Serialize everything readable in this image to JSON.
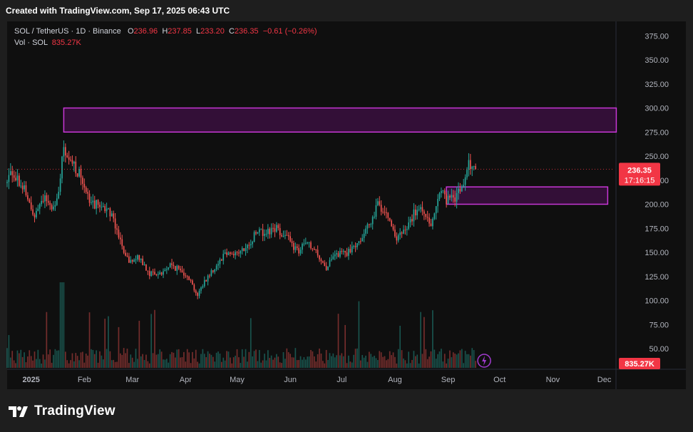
{
  "header": {
    "created_text": "Created with TradingView.com, Sep 17, 2025 06:43 UTC"
  },
  "legend": {
    "symbol": "SOL / TetherUS · 1D · Binance",
    "open_label": "O",
    "open": "236.96",
    "high_label": "H",
    "high": "237.85",
    "low_label": "L",
    "low": "233.20",
    "close_label": "C",
    "close": "236.35",
    "change": "−0.61 (−0.26%)",
    "vol_label": "Vol · SOL",
    "vol_value": "835.27K"
  },
  "brand": {
    "name": "TradingView"
  },
  "colors": {
    "up": "#26a69a",
    "down": "#ef5350",
    "box_stroke": "#c837d6",
    "box_fill": "#3a0f3e",
    "price_tag": "#f23645"
  },
  "chart_data": {
    "type": "candlestick",
    "x_range": [
      "2024-12-18",
      "2025-12-07"
    ],
    "y_range": [
      30,
      390
    ],
    "y_ticks": [
      "375.00",
      "350.00",
      "325.00",
      "300.00",
      "275.00",
      "250.00",
      "225.00",
      "200.00",
      "175.00",
      "150.00",
      "125.00",
      "100.00",
      "75.00",
      "50.00"
    ],
    "x_ticks": [
      {
        "label": "2025",
        "date": "2025-01-01"
      },
      {
        "label": "Feb",
        "date": "2025-02-01"
      },
      {
        "label": "Mar",
        "date": "2025-03-01"
      },
      {
        "label": "Apr",
        "date": "2025-04-01"
      },
      {
        "label": "May",
        "date": "2025-05-01"
      },
      {
        "label": "Jun",
        "date": "2025-06-01"
      },
      {
        "label": "Jul",
        "date": "2025-07-01"
      },
      {
        "label": "Aug",
        "date": "2025-08-01"
      },
      {
        "label": "Sep",
        "date": "2025-09-01"
      },
      {
        "label": "Oct",
        "date": "2025-10-01"
      },
      {
        "label": "Nov",
        "date": "2025-11-01"
      },
      {
        "label": "Dec",
        "date": "2025-12-01"
      }
    ],
    "price_path": [
      [
        "2024-12-18",
        222
      ],
      [
        "2024-12-20",
        238
      ],
      [
        "2024-12-28",
        216
      ],
      [
        "2025-01-02",
        188
      ],
      [
        "2025-01-08",
        207
      ],
      [
        "2025-01-14",
        196
      ],
      [
        "2025-01-17",
        215
      ],
      [
        "2025-01-20",
        258
      ],
      [
        "2025-01-22",
        244
      ],
      [
        "2025-01-26",
        240
      ],
      [
        "2025-02-01",
        222
      ],
      [
        "2025-02-04",
        200
      ],
      [
        "2025-02-10",
        200
      ],
      [
        "2025-02-16",
        192
      ],
      [
        "2025-02-20",
        175
      ],
      [
        "2025-02-25",
        143
      ],
      [
        "2025-03-01",
        140
      ],
      [
        "2025-03-05",
        145
      ],
      [
        "2025-03-11",
        128
      ],
      [
        "2025-03-18",
        128
      ],
      [
        "2025-03-23",
        137
      ],
      [
        "2025-03-28",
        132
      ],
      [
        "2025-04-02",
        127
      ],
      [
        "2025-04-08",
        105
      ],
      [
        "2025-04-12",
        120
      ],
      [
        "2025-04-19",
        137
      ],
      [
        "2025-04-24",
        150
      ],
      [
        "2025-05-01",
        149
      ],
      [
        "2025-05-08",
        155
      ],
      [
        "2025-05-12",
        173
      ],
      [
        "2025-05-18",
        170
      ],
      [
        "2025-05-24",
        175
      ],
      [
        "2025-05-29",
        168
      ],
      [
        "2025-06-02",
        158
      ],
      [
        "2025-06-06",
        150
      ],
      [
        "2025-06-10",
        160
      ],
      [
        "2025-06-17",
        148
      ],
      [
        "2025-06-22",
        134
      ],
      [
        "2025-06-28",
        148
      ],
      [
        "2025-07-05",
        150
      ],
      [
        "2025-07-11",
        163
      ],
      [
        "2025-07-16",
        175
      ],
      [
        "2025-07-22",
        200
      ],
      [
        "2025-07-28",
        190
      ],
      [
        "2025-08-02",
        163
      ],
      [
        "2025-08-08",
        175
      ],
      [
        "2025-08-12",
        190
      ],
      [
        "2025-08-17",
        195
      ],
      [
        "2025-08-22",
        180
      ],
      [
        "2025-08-28",
        215
      ],
      [
        "2025-08-31",
        205
      ],
      [
        "2025-09-04",
        205
      ],
      [
        "2025-09-08",
        215
      ],
      [
        "2025-09-11",
        226
      ],
      [
        "2025-09-13",
        242
      ],
      [
        "2025-09-15",
        240
      ],
      [
        "2025-09-17",
        236.35
      ]
    ],
    "zones": [
      {
        "from": "2025-01-20",
        "to": "2025-12-08",
        "low": 275,
        "high": 300
      },
      {
        "from": "2025-08-31",
        "to": "2025-12-03",
        "low": 200,
        "high": 218
      }
    ],
    "last_price": "236.35",
    "countdown": "17:16:15",
    "volume_label": "835.27K"
  }
}
